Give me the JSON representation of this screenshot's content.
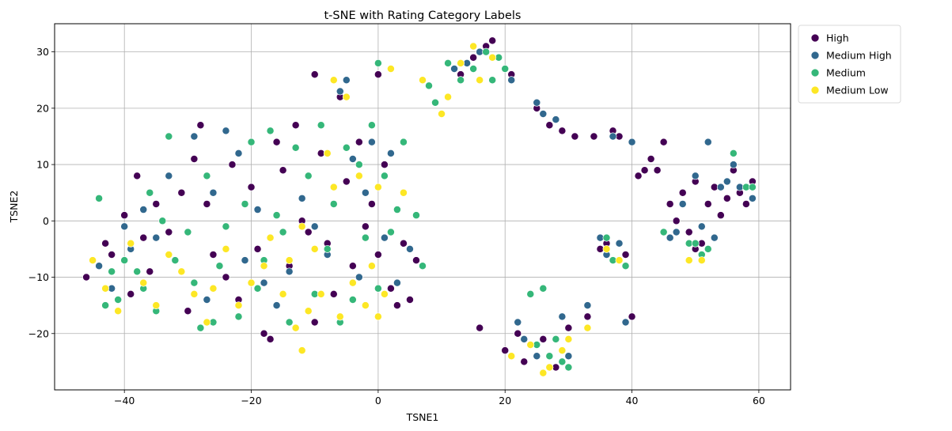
{
  "chart_data": {
    "type": "scatter",
    "title": "t-SNE with Rating Category Labels",
    "xlabel": "TSNE1",
    "ylabel": "TSNE2",
    "xlim": [
      -51,
      65
    ],
    "ylim": [
      -30,
      35
    ],
    "xticks": [
      -40,
      -20,
      0,
      20,
      40,
      60
    ],
    "yticks": [
      -20,
      -10,
      0,
      10,
      20,
      30
    ],
    "xtick_labels": [
      "−40",
      "−20",
      "0",
      "20",
      "40",
      "60"
    ],
    "ytick_labels": [
      "−20",
      "−10",
      "0",
      "10",
      "20",
      "30"
    ],
    "grid": true,
    "legend_position": "outside-top-right",
    "marker_edge_color": "#ffffff",
    "series": [
      {
        "name": "High",
        "color": "#440154",
        "points": [
          [
            -46,
            -10
          ],
          [
            -43,
            -4
          ],
          [
            -42,
            -6
          ],
          [
            -40,
            1
          ],
          [
            -39,
            -13
          ],
          [
            -38,
            8
          ],
          [
            -37,
            -3
          ],
          [
            -36,
            -9
          ],
          [
            -35,
            3
          ],
          [
            -33,
            -2
          ],
          [
            -31,
            5
          ],
          [
            -30,
            -16
          ],
          [
            -29,
            11
          ],
          [
            -28,
            17
          ],
          [
            -27,
            3
          ],
          [
            -26,
            -6
          ],
          [
            -24,
            -10
          ],
          [
            -23,
            10
          ],
          [
            -22,
            -14
          ],
          [
            -20,
            6
          ],
          [
            -19,
            -5
          ],
          [
            -18,
            -20
          ],
          [
            -17,
            -21
          ],
          [
            -16,
            14
          ],
          [
            -15,
            9
          ],
          [
            -14,
            -8
          ],
          [
            -13,
            17
          ],
          [
            -12,
            0
          ],
          [
            -11,
            -2
          ],
          [
            -10,
            26
          ],
          [
            -10,
            -18
          ],
          [
            -9,
            12
          ],
          [
            -8,
            -4
          ],
          [
            -7,
            -13
          ],
          [
            -6,
            22
          ],
          [
            -5,
            7
          ],
          [
            -4,
            -8
          ],
          [
            -3,
            14
          ],
          [
            -2,
            -1
          ],
          [
            -1,
            3
          ],
          [
            0,
            -6
          ],
          [
            0,
            26
          ],
          [
            1,
            10
          ],
          [
            2,
            -12
          ],
          [
            3,
            -15
          ],
          [
            4,
            -4
          ],
          [
            5,
            -14
          ],
          [
            6,
            -7
          ],
          [
            13,
            26
          ],
          [
            15,
            29
          ],
          [
            16,
            -19
          ],
          [
            17,
            31
          ],
          [
            18,
            32
          ],
          [
            20,
            -23
          ],
          [
            21,
            26
          ],
          [
            22,
            -20
          ],
          [
            23,
            -25
          ],
          [
            25,
            20
          ],
          [
            26,
            -21
          ],
          [
            27,
            17
          ],
          [
            28,
            -26
          ],
          [
            29,
            16
          ],
          [
            30,
            -19
          ],
          [
            31,
            15
          ],
          [
            33,
            -17
          ],
          [
            34,
            15
          ],
          [
            35,
            -5
          ],
          [
            36,
            -4
          ],
          [
            37,
            16
          ],
          [
            38,
            15
          ],
          [
            39,
            -6
          ],
          [
            40,
            -17
          ],
          [
            41,
            8
          ],
          [
            42,
            9
          ],
          [
            43,
            11
          ],
          [
            44,
            9
          ],
          [
            45,
            14
          ],
          [
            46,
            3
          ],
          [
            47,
            0
          ],
          [
            48,
            5
          ],
          [
            49,
            -2
          ],
          [
            50,
            -5
          ],
          [
            50,
            7
          ],
          [
            51,
            -4
          ],
          [
            52,
            3
          ],
          [
            53,
            6
          ],
          [
            54,
            1
          ],
          [
            55,
            4
          ],
          [
            56,
            9
          ],
          [
            57,
            5
          ],
          [
            58,
            3
          ],
          [
            59,
            7
          ]
        ]
      },
      {
        "name": "Medium High",
        "color": "#31688e",
        "points": [
          [
            -44,
            -8
          ],
          [
            -42,
            -12
          ],
          [
            -40,
            -1
          ],
          [
            -39,
            -5
          ],
          [
            -37,
            2
          ],
          [
            -35,
            -3
          ],
          [
            -33,
            8
          ],
          [
            -31,
            -9
          ],
          [
            -29,
            15
          ],
          [
            -27,
            -14
          ],
          [
            -26,
            5
          ],
          [
            -24,
            16
          ],
          [
            -22,
            12
          ],
          [
            -21,
            -7
          ],
          [
            -19,
            2
          ],
          [
            -18,
            -11
          ],
          [
            -16,
            -15
          ],
          [
            -14,
            -9
          ],
          [
            -12,
            4
          ],
          [
            -10,
            -1
          ],
          [
            -8,
            -6
          ],
          [
            -6,
            23
          ],
          [
            -5,
            25
          ],
          [
            -4,
            11
          ],
          [
            -3,
            -10
          ],
          [
            -2,
            5
          ],
          [
            -1,
            14
          ],
          [
            1,
            -3
          ],
          [
            2,
            12
          ],
          [
            3,
            -11
          ],
          [
            5,
            -5
          ],
          [
            12,
            27
          ],
          [
            14,
            28
          ],
          [
            16,
            30
          ],
          [
            20,
            27
          ],
          [
            21,
            25
          ],
          [
            22,
            -18
          ],
          [
            23,
            -21
          ],
          [
            25,
            -24
          ],
          [
            25,
            21
          ],
          [
            26,
            19
          ],
          [
            27,
            -26
          ],
          [
            28,
            18
          ],
          [
            29,
            -17
          ],
          [
            30,
            -24
          ],
          [
            33,
            -15
          ],
          [
            35,
            -3
          ],
          [
            36,
            -6
          ],
          [
            37,
            15
          ],
          [
            38,
            -4
          ],
          [
            39,
            -18
          ],
          [
            40,
            14
          ],
          [
            46,
            -3
          ],
          [
            47,
            -2
          ],
          [
            48,
            3
          ],
          [
            50,
            8
          ],
          [
            51,
            -1
          ],
          [
            52,
            14
          ],
          [
            53,
            -3
          ],
          [
            54,
            6
          ],
          [
            55,
            7
          ],
          [
            56,
            10
          ],
          [
            57,
            6
          ],
          [
            59,
            4
          ]
        ]
      },
      {
        "name": "Medium",
        "color": "#35b779",
        "points": [
          [
            -44,
            4
          ],
          [
            -43,
            -15
          ],
          [
            -42,
            -9
          ],
          [
            -41,
            -14
          ],
          [
            -40,
            -7
          ],
          [
            -38,
            -9
          ],
          [
            -37,
            -12
          ],
          [
            -36,
            5
          ],
          [
            -35,
            -16
          ],
          [
            -34,
            0
          ],
          [
            -33,
            15
          ],
          [
            -32,
            -7
          ],
          [
            -30,
            -2
          ],
          [
            -29,
            -11
          ],
          [
            -28,
            -19
          ],
          [
            -27,
            8
          ],
          [
            -26,
            -18
          ],
          [
            -25,
            -8
          ],
          [
            -24,
            -1
          ],
          [
            -22,
            -17
          ],
          [
            -21,
            3
          ],
          [
            -20,
            14
          ],
          [
            -19,
            -12
          ],
          [
            -18,
            -7
          ],
          [
            -17,
            16
          ],
          [
            -16,
            1
          ],
          [
            -15,
            -2
          ],
          [
            -14,
            -18
          ],
          [
            -13,
            13
          ],
          [
            -12,
            -23
          ],
          [
            -11,
            8
          ],
          [
            -10,
            -13
          ],
          [
            -9,
            17
          ],
          [
            -8,
            -5
          ],
          [
            -7,
            3
          ],
          [
            -6,
            -18
          ],
          [
            -5,
            13
          ],
          [
            -4,
            -14
          ],
          [
            -3,
            10
          ],
          [
            -2,
            -3
          ],
          [
            -1,
            17
          ],
          [
            0,
            -12
          ],
          [
            0,
            28
          ],
          [
            1,
            8
          ],
          [
            2,
            -2
          ],
          [
            3,
            2
          ],
          [
            4,
            14
          ],
          [
            6,
            1
          ],
          [
            7,
            -8
          ],
          [
            8,
            24
          ],
          [
            9,
            21
          ],
          [
            11,
            28
          ],
          [
            13,
            25
          ],
          [
            15,
            27
          ],
          [
            17,
            30
          ],
          [
            18,
            25
          ],
          [
            19,
            29
          ],
          [
            20,
            27
          ],
          [
            24,
            -13
          ],
          [
            25,
            -22
          ],
          [
            26,
            -12
          ],
          [
            27,
            -24
          ],
          [
            28,
            -21
          ],
          [
            29,
            -25
          ],
          [
            30,
            -26
          ],
          [
            36,
            -3
          ],
          [
            37,
            -7
          ],
          [
            39,
            -8
          ],
          [
            45,
            -2
          ],
          [
            49,
            -4
          ],
          [
            50,
            -4
          ],
          [
            51,
            -6
          ],
          [
            52,
            -5
          ],
          [
            56,
            12
          ],
          [
            58,
            6
          ],
          [
            59,
            6
          ]
        ]
      },
      {
        "name": "Medium Low",
        "color": "#fde725",
        "points": [
          [
            -45,
            -7
          ],
          [
            -43,
            -12
          ],
          [
            -41,
            -16
          ],
          [
            -39,
            -4
          ],
          [
            -37,
            -11
          ],
          [
            -35,
            -15
          ],
          [
            -33,
            -6
          ],
          [
            -31,
            -9
          ],
          [
            -29,
            -13
          ],
          [
            -27,
            -18
          ],
          [
            -26,
            -12
          ],
          [
            -24,
            -5
          ],
          [
            -22,
            -15
          ],
          [
            -20,
            -11
          ],
          [
            -18,
            -8
          ],
          [
            -17,
            -3
          ],
          [
            -15,
            -13
          ],
          [
            -14,
            -7
          ],
          [
            -13,
            -19
          ],
          [
            -12,
            -23
          ],
          [
            -12,
            -1
          ],
          [
            -11,
            -16
          ],
          [
            -10,
            -5
          ],
          [
            -9,
            -13
          ],
          [
            -8,
            12
          ],
          [
            -7,
            25
          ],
          [
            -7,
            6
          ],
          [
            -6,
            -17
          ],
          [
            -5,
            22
          ],
          [
            -4,
            -11
          ],
          [
            -3,
            8
          ],
          [
            -2,
            -15
          ],
          [
            -1,
            -8
          ],
          [
            0,
            -17
          ],
          [
            0,
            6
          ],
          [
            1,
            -13
          ],
          [
            2,
            27
          ],
          [
            4,
            5
          ],
          [
            7,
            25
          ],
          [
            10,
            19
          ],
          [
            11,
            22
          ],
          [
            13,
            28
          ],
          [
            15,
            31
          ],
          [
            16,
            25
          ],
          [
            18,
            29
          ],
          [
            21,
            -24
          ],
          [
            24,
            -22
          ],
          [
            26,
            -27
          ],
          [
            27,
            -26
          ],
          [
            29,
            -23
          ],
          [
            30,
            -21
          ],
          [
            33,
            -19
          ],
          [
            36,
            -5
          ],
          [
            38,
            -7
          ],
          [
            49,
            -7
          ],
          [
            51,
            -7
          ]
        ]
      }
    ]
  }
}
